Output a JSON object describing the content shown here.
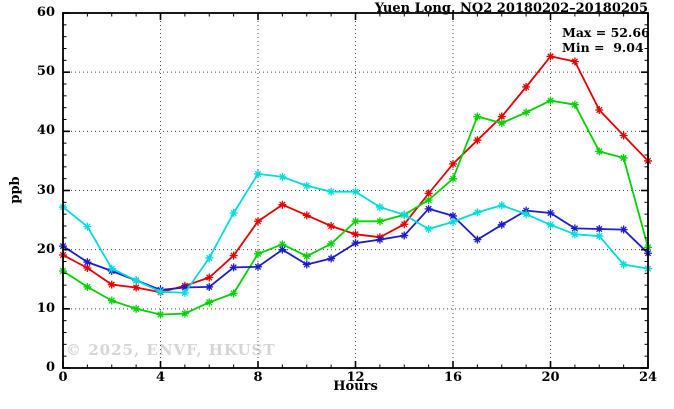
{
  "title": "Yuen Long, NO2 20180202–20180205",
  "annotation": {
    "max_label": "Max = 52.66",
    "min_label": "Min =  9.04"
  },
  "watermark": "© 2025, ENVF, HKUST",
  "axes": {
    "x_label": "Hours",
    "y_label": "ppb"
  },
  "chart_data": {
    "type": "line",
    "title": "Yuen Long, NO2 20180202–20180205",
    "xlabel": "Hours",
    "ylabel": "ppb",
    "xlim": [
      0,
      24
    ],
    "ylim": [
      0,
      60
    ],
    "x_major_ticks": [
      0,
      4,
      8,
      12,
      16,
      20,
      24
    ],
    "x_minor_step": 1,
    "y_major_ticks": [
      0,
      10,
      20,
      30,
      40,
      50,
      60
    ],
    "y_minor_step": 2,
    "x_grid_values": [
      4,
      8,
      12,
      16,
      20
    ],
    "y_grid_values": [
      10,
      20,
      30,
      40,
      50
    ],
    "grid": "dotted",
    "legend": "none",
    "stat_max": 52.66,
    "stat_min": 9.04,
    "x": [
      0,
      1,
      2,
      3,
      4,
      5,
      6,
      7,
      8,
      9,
      10,
      11,
      12,
      13,
      14,
      15,
      16,
      17,
      18,
      19,
      20,
      21,
      22,
      23,
      24
    ],
    "series": [
      {
        "name": "series-red",
        "color": "#e60000",
        "values": [
          19.1,
          16.9,
          14.1,
          13.6,
          12.8,
          13.9,
          15.3,
          19.0,
          24.8,
          27.6,
          25.8,
          24.0,
          22.6,
          22.1,
          24.3,
          29.5,
          34.5,
          38.5,
          42.5,
          47.5,
          52.66,
          51.8,
          43.6,
          39.3,
          35.0
        ]
      },
      {
        "name": "series-green",
        "color": "#00d300",
        "values": [
          16.4,
          13.7,
          11.4,
          10.0,
          9.04,
          9.2,
          11.1,
          12.6,
          19.3,
          20.9,
          18.9,
          21.0,
          24.8,
          24.8,
          25.9,
          28.4,
          32.0,
          42.5,
          41.4,
          43.2,
          45.2,
          44.5,
          36.6,
          35.5,
          20.4
        ]
      },
      {
        "name": "series-blue",
        "color": "#1c1ccd",
        "values": [
          20.6,
          17.9,
          16.4,
          14.8,
          13.2,
          13.6,
          13.7,
          17.0,
          17.1,
          20.0,
          17.5,
          18.5,
          21.1,
          21.7,
          22.4,
          26.9,
          25.7,
          21.7,
          24.2,
          26.6,
          26.2,
          23.6,
          23.5,
          23.4,
          19.4
        ]
      },
      {
        "name": "series-cyan",
        "color": "#00dcdc",
        "values": [
          27.2,
          23.9,
          16.8,
          14.8,
          12.9,
          12.7,
          18.6,
          26.2,
          32.8,
          32.3,
          30.8,
          29.8,
          29.8,
          27.2,
          25.9,
          23.5,
          24.7,
          26.3,
          27.5,
          26.0,
          24.2,
          22.6,
          22.3,
          17.5,
          16.8
        ]
      }
    ]
  }
}
